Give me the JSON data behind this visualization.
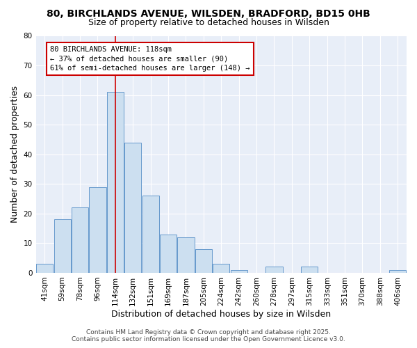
{
  "title_line1": "80, BIRCHLANDS AVENUE, WILSDEN, BRADFORD, BD15 0HB",
  "title_line2": "Size of property relative to detached houses in Wilsden",
  "xlabel": "Distribution of detached houses by size in Wilsden",
  "ylabel": "Number of detached properties",
  "bar_color": "#ccdff0",
  "bar_edgecolor": "#6699cc",
  "categories": [
    "41sqm",
    "59sqm",
    "78sqm",
    "96sqm",
    "114sqm",
    "132sqm",
    "151sqm",
    "169sqm",
    "187sqm",
    "205sqm",
    "224sqm",
    "242sqm",
    "260sqm",
    "278sqm",
    "297sqm",
    "315sqm",
    "333sqm",
    "351sqm",
    "370sqm",
    "388sqm",
    "406sqm"
  ],
  "values": [
    3,
    18,
    22,
    29,
    61,
    44,
    26,
    13,
    12,
    8,
    3,
    1,
    0,
    2,
    0,
    2,
    0,
    0,
    0,
    0,
    1
  ],
  "ylim": [
    0,
    80
  ],
  "yticks": [
    0,
    10,
    20,
    30,
    40,
    50,
    60,
    70,
    80
  ],
  "property_line_x": 4.0,
  "annotation_text": "80 BIRCHLANDS AVENUE: 118sqm\n← 37% of detached houses are smaller (90)\n61% of semi-detached houses are larger (148) →",
  "annotation_box_color": "#ffffff",
  "annotation_border_color": "#cc0000",
  "red_line_color": "#cc0000",
  "background_color": "#ffffff",
  "plot_background": "#e8eef8",
  "footer_line1": "Contains HM Land Registry data © Crown copyright and database right 2025.",
  "footer_line2": "Contains public sector information licensed under the Open Government Licence v3.0.",
  "title_fontsize": 10,
  "subtitle_fontsize": 9,
  "axis_label_fontsize": 9,
  "tick_fontsize": 7.5,
  "annotation_fontsize": 7.5,
  "footer_fontsize": 6.5
}
